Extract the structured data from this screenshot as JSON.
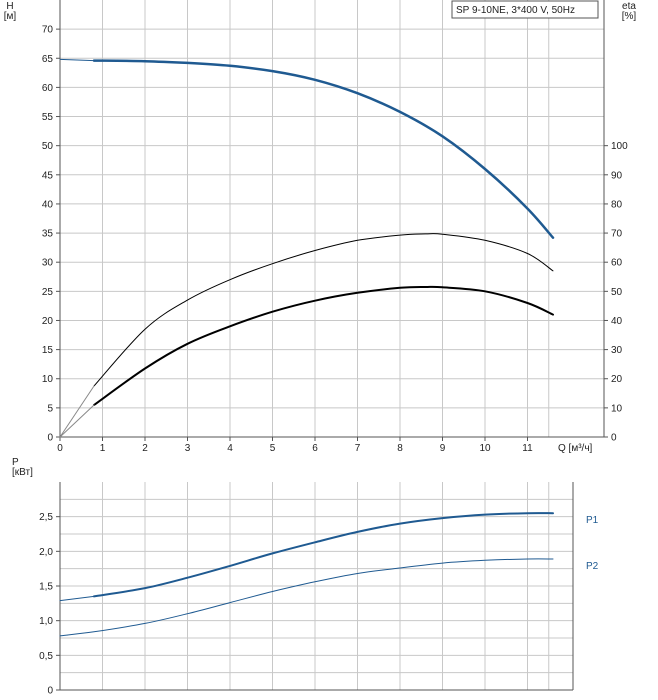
{
  "legend_box": {
    "text": "SP 9-10NE, 3*400 V, 50Hz"
  },
  "chart_data": [
    {
      "type": "line",
      "title": "",
      "xlabel": "Q [м³/ч]",
      "ylabel": "H\n[м]",
      "y2label": "eta\n[%]",
      "xlim": [
        0,
        12.8
      ],
      "ylim": [
        0,
        75
      ],
      "y2lim": [
        0,
        150
      ],
      "x_ticks": [
        0,
        1,
        2,
        3,
        4,
        5,
        6,
        7,
        8,
        9,
        10,
        11
      ],
      "y_ticks": [
        0,
        5,
        10,
        15,
        20,
        25,
        30,
        35,
        40,
        45,
        50,
        55,
        60,
        65,
        70
      ],
      "y2_ticks": [
        0,
        10,
        20,
        30,
        40,
        50,
        60,
        70,
        80,
        90,
        100
      ],
      "grid": true,
      "series": [
        {
          "color": "#1f5a91",
          "axis": "left",
          "width": 2.5,
          "x": [
            0.8,
            2,
            3,
            4,
            5,
            6,
            7,
            8,
            9,
            10,
            11,
            11.6
          ],
          "values": [
            64.6,
            64.5,
            64.2,
            63.7,
            62.8,
            61.3,
            59.0,
            55.8,
            51.6,
            46.0,
            39.2,
            34.2
          ]
        },
        {
          "color": "#1f5a91",
          "axis": "left",
          "width": 1,
          "x": [
            0,
            0.8
          ],
          "values": [
            64.8,
            64.6
          ]
        },
        {
          "color": "#000000",
          "axis": "right",
          "width": 1,
          "x": [
            0.8,
            2,
            3,
            4,
            5,
            6,
            7,
            8,
            8.6,
            9,
            10,
            11,
            11.6
          ],
          "values": [
            17.5,
            37,
            47,
            54,
            59.5,
            64,
            67.5,
            69.3,
            69.7,
            69.6,
            67.5,
            63,
            57
          ]
        },
        {
          "color": "#000000",
          "axis": "right",
          "width": 2,
          "x": [
            0.8,
            2,
            3,
            4,
            5,
            6,
            7,
            8,
            8.6,
            9,
            10,
            11,
            11.6
          ],
          "values": [
            11,
            23.5,
            32,
            38,
            43,
            46.8,
            49.5,
            51.2,
            51.5,
            51.4,
            50,
            46,
            42
          ]
        },
        {
          "color": "#888888",
          "axis": "right",
          "width": 1,
          "x": [
            0,
            0.8
          ],
          "values": [
            0,
            17.5
          ]
        },
        {
          "color": "#888888",
          "axis": "right",
          "width": 1,
          "x": [
            0,
            0.8
          ],
          "values": [
            0,
            11
          ]
        }
      ]
    },
    {
      "type": "line",
      "title": "",
      "xlabel": "",
      "ylabel": "P\n[кВт]",
      "xlim": [
        0,
        12.8
      ],
      "ylim": [
        0,
        3
      ],
      "y_ticks": [
        0,
        0.5,
        1.0,
        1.5,
        2.0,
        2.5
      ],
      "y_tick_labels": [
        "0",
        "0,5",
        "1,0",
        "1,5",
        "2,0",
        "2,5"
      ],
      "grid": true,
      "series": [
        {
          "name": "P1",
          "color": "#1f5a91",
          "width": 2,
          "x": [
            0.8,
            2,
            3,
            4,
            5,
            6,
            7,
            8,
            9,
            10,
            11,
            11.6
          ],
          "values": [
            1.35,
            1.47,
            1.62,
            1.79,
            1.97,
            2.13,
            2.28,
            2.4,
            2.48,
            2.53,
            2.55,
            2.55
          ]
        },
        {
          "color": "#1f5a91",
          "width": 1,
          "x": [
            0,
            0.8
          ],
          "values": [
            1.29,
            1.35
          ]
        },
        {
          "name": "P2",
          "color": "#1f5a91",
          "width": 1,
          "x": [
            0,
            0.8,
            2,
            3,
            4,
            5,
            6,
            7,
            8,
            9,
            10,
            11,
            11.6
          ],
          "values": [
            0.78,
            0.84,
            0.96,
            1.1,
            1.26,
            1.42,
            1.56,
            1.68,
            1.76,
            1.83,
            1.87,
            1.89,
            1.89
          ]
        }
      ]
    }
  ]
}
